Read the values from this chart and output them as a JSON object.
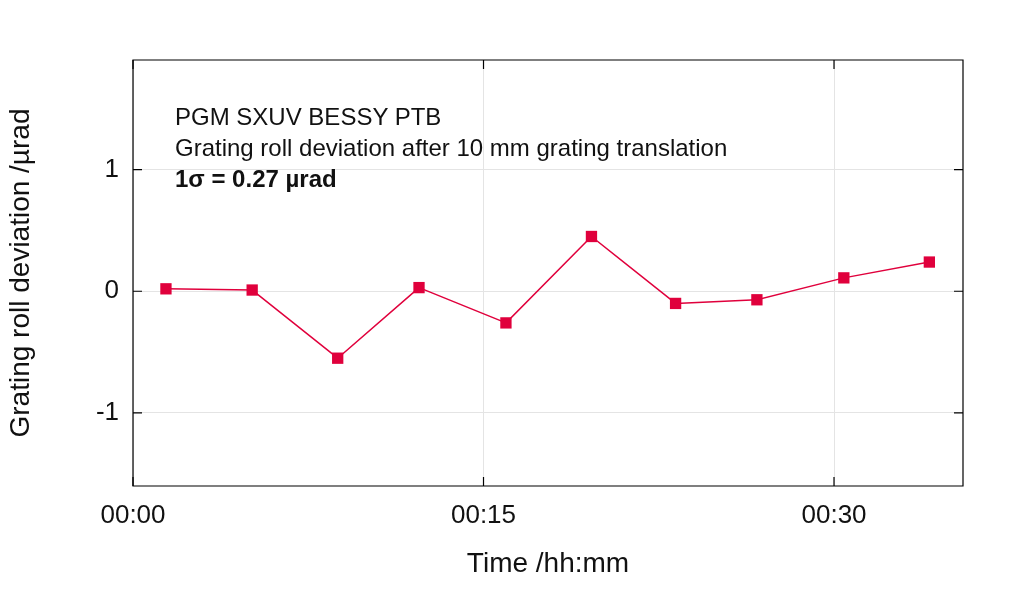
{
  "chart_data": {
    "type": "line",
    "xlabel": "Time /hh:mm",
    "ylabel": "Grating roll deviation /µrad",
    "annotations": [
      "PGM SXUV BESSY PTB",
      "Grating roll deviation after 10 mm grating translation",
      "1σ = 0.27 µrad"
    ],
    "x": [
      0.0235,
      0.085,
      0.146,
      0.204,
      0.266,
      0.327,
      0.387,
      0.445,
      0.507,
      0.568
    ],
    "series": [
      {
        "color": "#e0003c",
        "values": [
          0.02,
          0.01,
          -0.55,
          0.03,
          -0.26,
          0.45,
          -0.1,
          -0.07,
          0.11,
          0.24
        ]
      }
    ],
    "xlim": [
      0,
      0.592
    ],
    "xticks": [
      {
        "value": 0,
        "label": "00:00"
      },
      {
        "value": 0.25,
        "label": "00:15"
      },
      {
        "value": 0.5,
        "label": "00:30"
      }
    ],
    "ylim": [
      -1.6,
      1.9
    ],
    "yticks": [
      -1,
      0,
      1
    ],
    "grid": true,
    "legend": false,
    "marker": "square",
    "line_style": "solid"
  }
}
